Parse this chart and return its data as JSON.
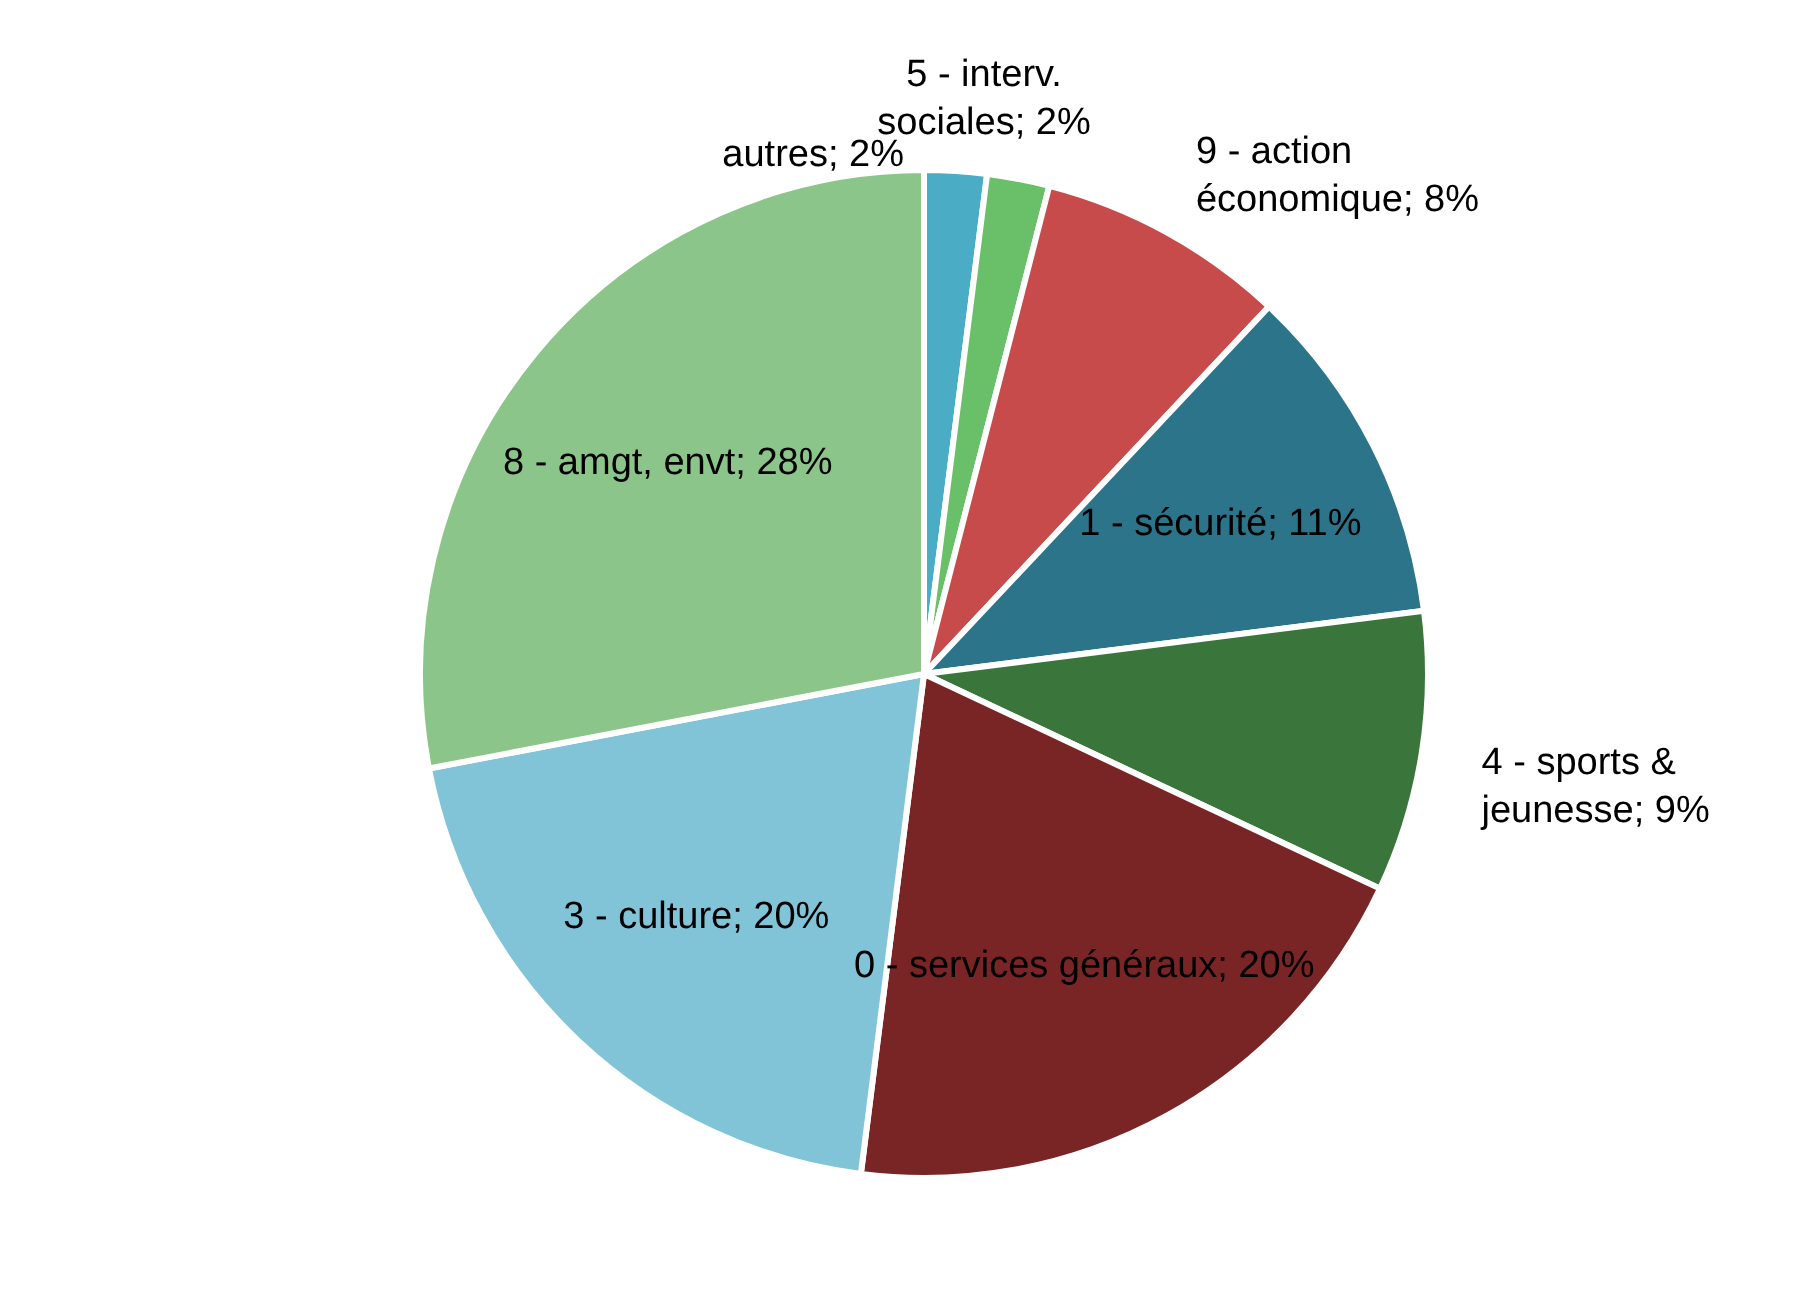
{
  "chart_data": {
    "type": "pie",
    "categories": [
      "autres",
      "5 - interv. sociales",
      "9 - action économique",
      "1 - sécurité",
      "4 - sports & jeunesse",
      "0 - services généraux",
      "3 - culture",
      "8 - amgt, envt"
    ],
    "values": [
      2,
      2,
      8,
      11,
      9,
      20,
      20,
      28
    ],
    "value_labels": [
      "2%",
      "2%",
      "8%",
      "11%",
      "9%",
      "20%",
      "20%",
      "28%"
    ],
    "colors": [
      "#4bacc6",
      "#6abf69",
      "#c84b4b",
      "#2c7489",
      "#3a763c",
      "#7a2525",
      "#82c4d7",
      "#8cc589"
    ]
  }
}
